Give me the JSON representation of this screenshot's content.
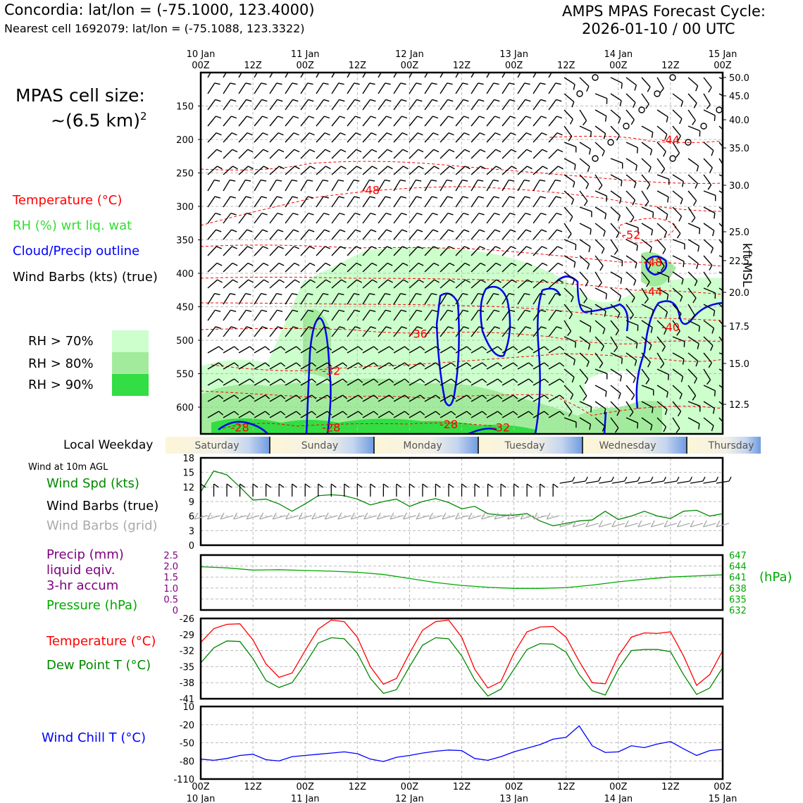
{
  "header": {
    "location": "Concordia: lat/lon = (-75.1000, 123.4000)",
    "nearest_cell": "Nearest cell 1692079: lat/lon = (-75.1088, 123.3322)",
    "forecast_title": "AMPS MPAS Forecast Cycle:",
    "forecast_cycle": "2026-01-10 / 00 UTC"
  },
  "cell_size": {
    "line1": "MPAS cell size:",
    "line2": "~(6.5 km)",
    "exponent": "2"
  },
  "legend": {
    "temperature": "Temperature (°C)",
    "rh": "RH (%) wrt liq. wat",
    "cloud": "Cloud/Precip outline",
    "wind": "Wind Barbs (kts) (true)",
    "rh70": "RH > 70%",
    "rh80": "RH > 80%",
    "rh90": "RH > 90%",
    "colors": {
      "rh70": "#ccffcc",
      "rh80": "#a3eb9c",
      "rh90": "#33dd44",
      "temp": "#ff0000",
      "cloud": "#0000ee"
    }
  },
  "time_axis": {
    "date_labels": [
      "10 Jan",
      "",
      "11 Jan",
      "",
      "12 Jan",
      "",
      "13 Jan",
      "",
      "14 Jan",
      "",
      "15 Jan"
    ],
    "hour_labels": [
      "00Z",
      "12Z",
      "00Z",
      "12Z",
      "00Z",
      "12Z",
      "00Z",
      "12Z",
      "00Z",
      "12Z",
      "00Z"
    ]
  },
  "weekday": {
    "title": "Local Weekday",
    "days": [
      "Saturday",
      "Sunday",
      "Monday",
      "Tuesday",
      "Wednesday",
      "Thursday"
    ]
  },
  "chart_data": [
    {
      "type": "heatmap",
      "title": "Vertical cross-section",
      "ylabel_left": "Pressure (hPa)",
      "ylabel_right": "kft MSL",
      "y_ticks_hPa": [
        150,
        200,
        250,
        300,
        350,
        400,
        450,
        500,
        550,
        600
      ],
      "y_ticks_kft": [
        "50.0",
        "45.0",
        "40.0",
        "35.0",
        "30.0",
        "25.0",
        "22.5",
        "20.0",
        "17.5",
        "15.0",
        "12.5"
      ],
      "ylim_hPa": [
        100,
        640
      ],
      "xlim_hours": [
        0,
        120
      ],
      "temperature_contour_labels": [
        {
          "label": "-44",
          "hour": 108,
          "hPa": 200
        },
        {
          "label": "-48",
          "hour": 39,
          "hPa": 275
        },
        {
          "label": "-52",
          "hour": 99,
          "hPa": 342
        },
        {
          "label": "-48",
          "hour": 104,
          "hPa": 383
        },
        {
          "label": "-44",
          "hour": 104,
          "hPa": 427
        },
        {
          "label": "-40",
          "hour": 108,
          "hPa": 480
        },
        {
          "label": "-36",
          "hour": 50,
          "hPa": 490
        },
        {
          "label": "-32",
          "hour": 30,
          "hPa": 545
        },
        {
          "label": "-28",
          "hour": 9,
          "hPa": 630
        },
        {
          "label": "-28",
          "hour": 30,
          "hPa": 630
        },
        {
          "label": "-28",
          "hour": 57,
          "hPa": 625
        },
        {
          "label": "-32",
          "hour": 69,
          "hPa": 630
        }
      ]
    },
    {
      "type": "line",
      "title": "Wind at 10m AGL",
      "label_speed": "Wind Spd (kts)",
      "label_barbs": "Wind Barbs (true)",
      "label_grid": "Wind Barbs (grid)",
      "ylim": [
        0,
        18
      ],
      "yticks": [
        "0",
        "3",
        "6",
        "9",
        "12",
        "15",
        "18"
      ],
      "x_hours": [
        0,
        3,
        6,
        9,
        12,
        15,
        18,
        21,
        24,
        27,
        30,
        33,
        36,
        39,
        42,
        45,
        48,
        51,
        54,
        57,
        60,
        63,
        66,
        69,
        72,
        75,
        78,
        81,
        84,
        87,
        90,
        93,
        96,
        99,
        102,
        105,
        108,
        111,
        114,
        117,
        120
      ],
      "series": [
        {
          "name": "Wind Spd (kts)",
          "color": "#008800",
          "values": [
            11,
            15.3,
            14.5,
            12,
            9.3,
            9.5,
            8.5,
            7,
            8.5,
            10.2,
            10.4,
            10.2,
            9.5,
            8.3,
            9,
            9.5,
            8,
            9,
            9.6,
            8.8,
            7.5,
            8,
            6.5,
            6.2,
            6.2,
            6.5,
            5,
            4,
            4.5,
            5,
            5.2,
            7,
            5.3,
            6,
            7,
            6,
            5.5,
            7,
            7.2,
            6,
            6.5
          ]
        }
      ]
    },
    {
      "type": "line",
      "title": "Precip and Pressure",
      "label_precip1": "Precip (mm)",
      "label_precip2": "liquid eqiv.",
      "label_precip3": "3-hr accum",
      "label_pressure": "Pressure (hPa)",
      "right_unit": "(hPa)",
      "ylim_precip": [
        0,
        2.5
      ],
      "yticks_precip": [
        "0",
        "0.5",
        "1.0",
        "1.5",
        "2.0",
        "2.5"
      ],
      "ylim_pressure": [
        632,
        647
      ],
      "yticks_pressure": [
        "632",
        "635",
        "638",
        "641",
        "644",
        "647"
      ],
      "x_hours": [
        0,
        6,
        12,
        18,
        24,
        30,
        36,
        42,
        48,
        54,
        60,
        66,
        72,
        78,
        84,
        90,
        96,
        102,
        108,
        114,
        120
      ],
      "series": [
        {
          "name": "Pressure (hPa)",
          "color": "#00aa00",
          "values": [
            643.8,
            643.5,
            642.9,
            643.0,
            642.8,
            642.6,
            642.3,
            641.7,
            640.6,
            639.5,
            638.7,
            638.2,
            637.9,
            637.9,
            638.1,
            638.8,
            639.7,
            640.4,
            641.0,
            641.3,
            641.6
          ]
        },
        {
          "name": "Precip (mm)",
          "color": "#800080",
          "values": []
        }
      ]
    },
    {
      "type": "line",
      "title": "Temperature and Dew Point",
      "label_temp": "Temperature (°C)",
      "label_dew": "Dew Point T (°C)",
      "ylim": [
        -41,
        -26
      ],
      "yticks": [
        "-41",
        "-38",
        "-35",
        "-32",
        "-29",
        "-26"
      ],
      "x_hours": [
        0,
        3,
        6,
        9,
        12,
        15,
        18,
        21,
        24,
        27,
        30,
        33,
        36,
        39,
        42,
        45,
        48,
        51,
        54,
        57,
        60,
        63,
        66,
        69,
        72,
        75,
        78,
        81,
        84,
        87,
        90,
        93,
        96,
        99,
        102,
        105,
        108,
        111,
        114,
        117,
        120
      ],
      "series": [
        {
          "name": "Temperature (°C)",
          "color": "#ff0000",
          "values": [
            -30.5,
            -27.9,
            -27.1,
            -27,
            -30,
            -34.5,
            -37,
            -36.2,
            -32,
            -28,
            -26.3,
            -26.6,
            -29.5,
            -35,
            -38.3,
            -37.2,
            -32.5,
            -28.2,
            -26.6,
            -26.3,
            -29.5,
            -35.5,
            -39,
            -37.8,
            -32.5,
            -28.5,
            -27.6,
            -27.5,
            -29.5,
            -34,
            -38,
            -38.2,
            -33,
            -29.5,
            -28.7,
            -28.8,
            -28.5,
            -33,
            -38.5,
            -36.5,
            -32
          ]
        },
        {
          "name": "Dew Point T (°C)",
          "color": "#008800",
          "values": [
            -34.3,
            -31.5,
            -30.2,
            -30.3,
            -33.5,
            -37.6,
            -38.9,
            -38,
            -34.5,
            -30.6,
            -29.6,
            -29.8,
            -32.5,
            -37.2,
            -40,
            -39.3,
            -35,
            -31,
            -29.6,
            -29.8,
            -33,
            -37.5,
            -40.5,
            -39.2,
            -35.5,
            -31.8,
            -30.7,
            -30.8,
            -32.3,
            -36.5,
            -39.5,
            -40.3,
            -35.5,
            -32,
            -31.8,
            -31.8,
            -32.2,
            -36.5,
            -40.2,
            -39,
            -35.2
          ]
        }
      ]
    },
    {
      "type": "line",
      "title": "Wind Chill",
      "label": "Wind Chill T (°C)",
      "ylim": [
        -110,
        10
      ],
      "yticks": [
        "-110",
        "-80",
        "-50",
        "-20",
        "10"
      ],
      "x_hours": [
        0,
        3,
        6,
        9,
        12,
        15,
        18,
        21,
        24,
        27,
        30,
        33,
        36,
        39,
        42,
        45,
        48,
        51,
        54,
        57,
        60,
        63,
        66,
        69,
        72,
        75,
        78,
        81,
        84,
        87,
        90,
        93,
        96,
        99,
        102,
        105,
        108,
        111,
        114,
        117,
        120
      ],
      "series": [
        {
          "name": "Wind Chill T (°C)",
          "color": "#0000ff",
          "values": [
            -77,
            -79,
            -76,
            -71,
            -69,
            -78,
            -80,
            -73,
            -71,
            -69,
            -67,
            -65,
            -68,
            -77,
            -81,
            -74,
            -71,
            -67,
            -64,
            -62,
            -63,
            -76,
            -79,
            -73,
            -65,
            -59,
            -53,
            -44,
            -41,
            -22,
            -55,
            -66,
            -65,
            -55,
            -58,
            -52,
            -48,
            -60,
            -71,
            -63,
            -61
          ]
        }
      ]
    }
  ]
}
